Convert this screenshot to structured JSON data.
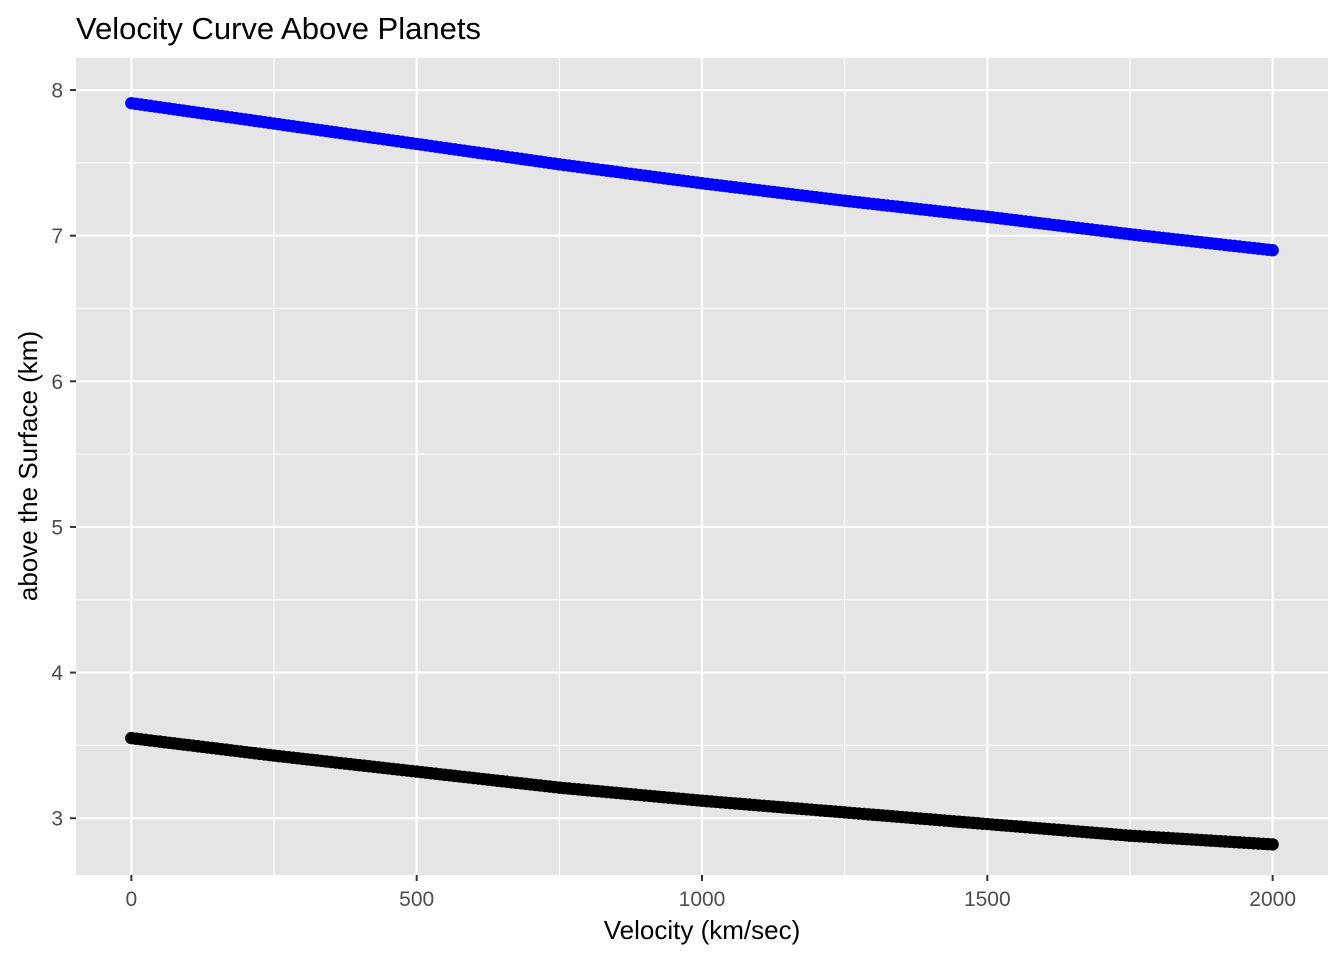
{
  "chart_data": {
    "type": "scatter",
    "title": "Velocity Curve Above Planets",
    "xlabel": "Velocity (km/sec)",
    "ylabel": "above the Surface (km)",
    "xlim": [
      -97,
      2097
    ],
    "ylim": [
      2.61,
      8.22
    ],
    "x_ticks": [
      0,
      500,
      1000,
      1500,
      2000
    ],
    "y_ticks": [
      3,
      4,
      5,
      6,
      7,
      8
    ],
    "grid": true,
    "legend": "none",
    "panel_color": "#e5e5e5",
    "series": [
      {
        "color": "#0000ff",
        "points": [
          [
            0,
            7.91
          ],
          [
            250,
            7.77
          ],
          [
            500,
            7.63
          ],
          [
            750,
            7.49
          ],
          [
            1000,
            7.36
          ],
          [
            1250,
            7.24
          ],
          [
            1500,
            7.13
          ],
          [
            1750,
            7.01
          ],
          [
            2000,
            6.9
          ]
        ]
      },
      {
        "color": "#000000",
        "points": [
          [
            0,
            3.55
          ],
          [
            250,
            3.43
          ],
          [
            500,
            3.32
          ],
          [
            750,
            3.21
          ],
          [
            1000,
            3.12
          ],
          [
            1250,
            3.04
          ],
          [
            1500,
            2.96
          ],
          [
            1750,
            2.88
          ],
          [
            2000,
            2.82
          ]
        ]
      }
    ]
  }
}
